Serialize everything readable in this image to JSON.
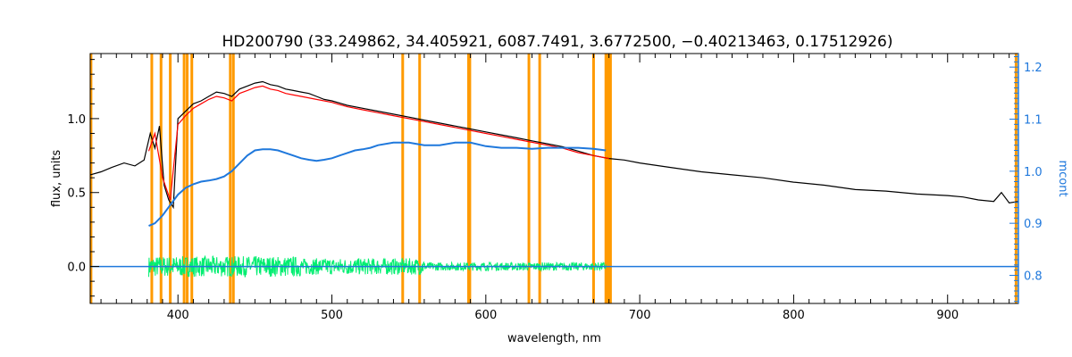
{
  "chart_data": {
    "type": "line",
    "title": "HD200790    (33.249862, 34.405921, 6087.7491, 3.6772500, −0.40213463, 0.17512926)",
    "xlabel": "wavelength, nm",
    "ylabel": "flux, units",
    "y2label": "mcont",
    "xlim": [
      343,
      946
    ],
    "ylim": [
      -0.25,
      1.44
    ],
    "y2lim": [
      0.746,
      1.226
    ],
    "xticks": [
      400,
      500,
      600,
      700,
      800,
      900
    ],
    "yticks": [
      0.0,
      0.5,
      1.0
    ],
    "y2ticks": [
      0.8,
      0.9,
      1.0,
      1.1,
      1.2
    ],
    "grid": false,
    "colors": {
      "observed": "#000000",
      "model": "#ff0000",
      "residual": "#00ee70",
      "mcont": "#1f78dc",
      "mask": "#ff9a00",
      "axis2": "#1f78dc",
      "frame": "#000000"
    },
    "mask_lines": [
      343.5,
      383,
      389,
      395,
      404,
      406,
      409,
      434,
      436,
      546,
      557,
      588.8,
      589.6,
      628,
      635,
      670,
      678,
      679.5,
      681,
      944.5
    ],
    "series": [
      {
        "key": "observed",
        "x": [
          343,
          350,
          357,
          365,
          372,
          378,
          382,
          385,
          388,
          391,
          394,
          397,
          400,
          405,
          410,
          415,
          420,
          425,
          430,
          435,
          440,
          445,
          450,
          455,
          460,
          465,
          470,
          475,
          480,
          485,
          490,
          495,
          500,
          510,
          520,
          530,
          540,
          550,
          560,
          570,
          580,
          590,
          600,
          610,
          620,
          630,
          640,
          650,
          660,
          670,
          680,
          690,
          700,
          720,
          740,
          760,
          780,
          800,
          820,
          840,
          860,
          880,
          900,
          910,
          920,
          930,
          935,
          940,
          946
        ],
        "y": [
          0.62,
          0.64,
          0.67,
          0.7,
          0.68,
          0.72,
          0.9,
          0.8,
          0.95,
          0.55,
          0.45,
          0.4,
          1.0,
          1.05,
          1.1,
          1.12,
          1.15,
          1.18,
          1.17,
          1.15,
          1.2,
          1.22,
          1.24,
          1.25,
          1.23,
          1.22,
          1.2,
          1.19,
          1.18,
          1.17,
          1.15,
          1.13,
          1.12,
          1.09,
          1.07,
          1.05,
          1.03,
          1.01,
          0.99,
          0.97,
          0.95,
          0.93,
          0.91,
          0.89,
          0.87,
          0.85,
          0.83,
          0.81,
          0.78,
          0.75,
          0.73,
          0.72,
          0.7,
          0.67,
          0.64,
          0.62,
          0.6,
          0.57,
          0.55,
          0.52,
          0.51,
          0.49,
          0.48,
          0.47,
          0.45,
          0.44,
          0.5,
          0.43,
          0.44
        ]
      },
      {
        "key": "model",
        "x": [
          381,
          385,
          390,
          395,
          400,
          405,
          410,
          415,
          420,
          425,
          430,
          435,
          440,
          445,
          450,
          455,
          460,
          465,
          470,
          475,
          480,
          490,
          500,
          510,
          520,
          530,
          540,
          550,
          560,
          570,
          580,
          590,
          600,
          610,
          620,
          630,
          640,
          650,
          660,
          670,
          680
        ],
        "y": [
          0.78,
          0.9,
          0.6,
          0.45,
          0.96,
          1.02,
          1.07,
          1.1,
          1.13,
          1.15,
          1.14,
          1.12,
          1.17,
          1.19,
          1.21,
          1.22,
          1.2,
          1.19,
          1.17,
          1.16,
          1.15,
          1.13,
          1.11,
          1.08,
          1.06,
          1.04,
          1.02,
          1.0,
          0.98,
          0.96,
          0.94,
          0.92,
          0.9,
          0.88,
          0.86,
          0.84,
          0.82,
          0.8,
          0.77,
          0.75,
          0.73
        ]
      },
      {
        "key": "mcont",
        "axis": "right",
        "x": [
          381,
          385,
          390,
          395,
          400,
          405,
          410,
          415,
          420,
          425,
          430,
          435,
          440,
          445,
          450,
          455,
          460,
          465,
          470,
          475,
          480,
          485,
          490,
          495,
          500,
          505,
          510,
          515,
          520,
          525,
          530,
          540,
          550,
          560,
          570,
          580,
          590,
          600,
          610,
          620,
          630,
          640,
          650,
          660,
          670,
          678
        ],
        "y": [
          0.895,
          0.9,
          0.915,
          0.935,
          0.955,
          0.968,
          0.975,
          0.98,
          0.982,
          0.985,
          0.99,
          1.0,
          1.015,
          1.03,
          1.04,
          1.042,
          1.042,
          1.04,
          1.035,
          1.03,
          1.025,
          1.022,
          1.02,
          1.022,
          1.025,
          1.03,
          1.035,
          1.04,
          1.042,
          1.045,
          1.05,
          1.055,
          1.055,
          1.05,
          1.05,
          1.055,
          1.055,
          1.048,
          1.045,
          1.045,
          1.043,
          1.045,
          1.045,
          1.045,
          1.043,
          1.04
        ]
      },
      {
        "key": "zero-line",
        "x": [
          343,
          946
        ],
        "y": [
          0.0,
          0.0
        ]
      }
    ],
    "residual_range": [
      381,
      678
    ],
    "residual_amplitude": 0.07
  }
}
